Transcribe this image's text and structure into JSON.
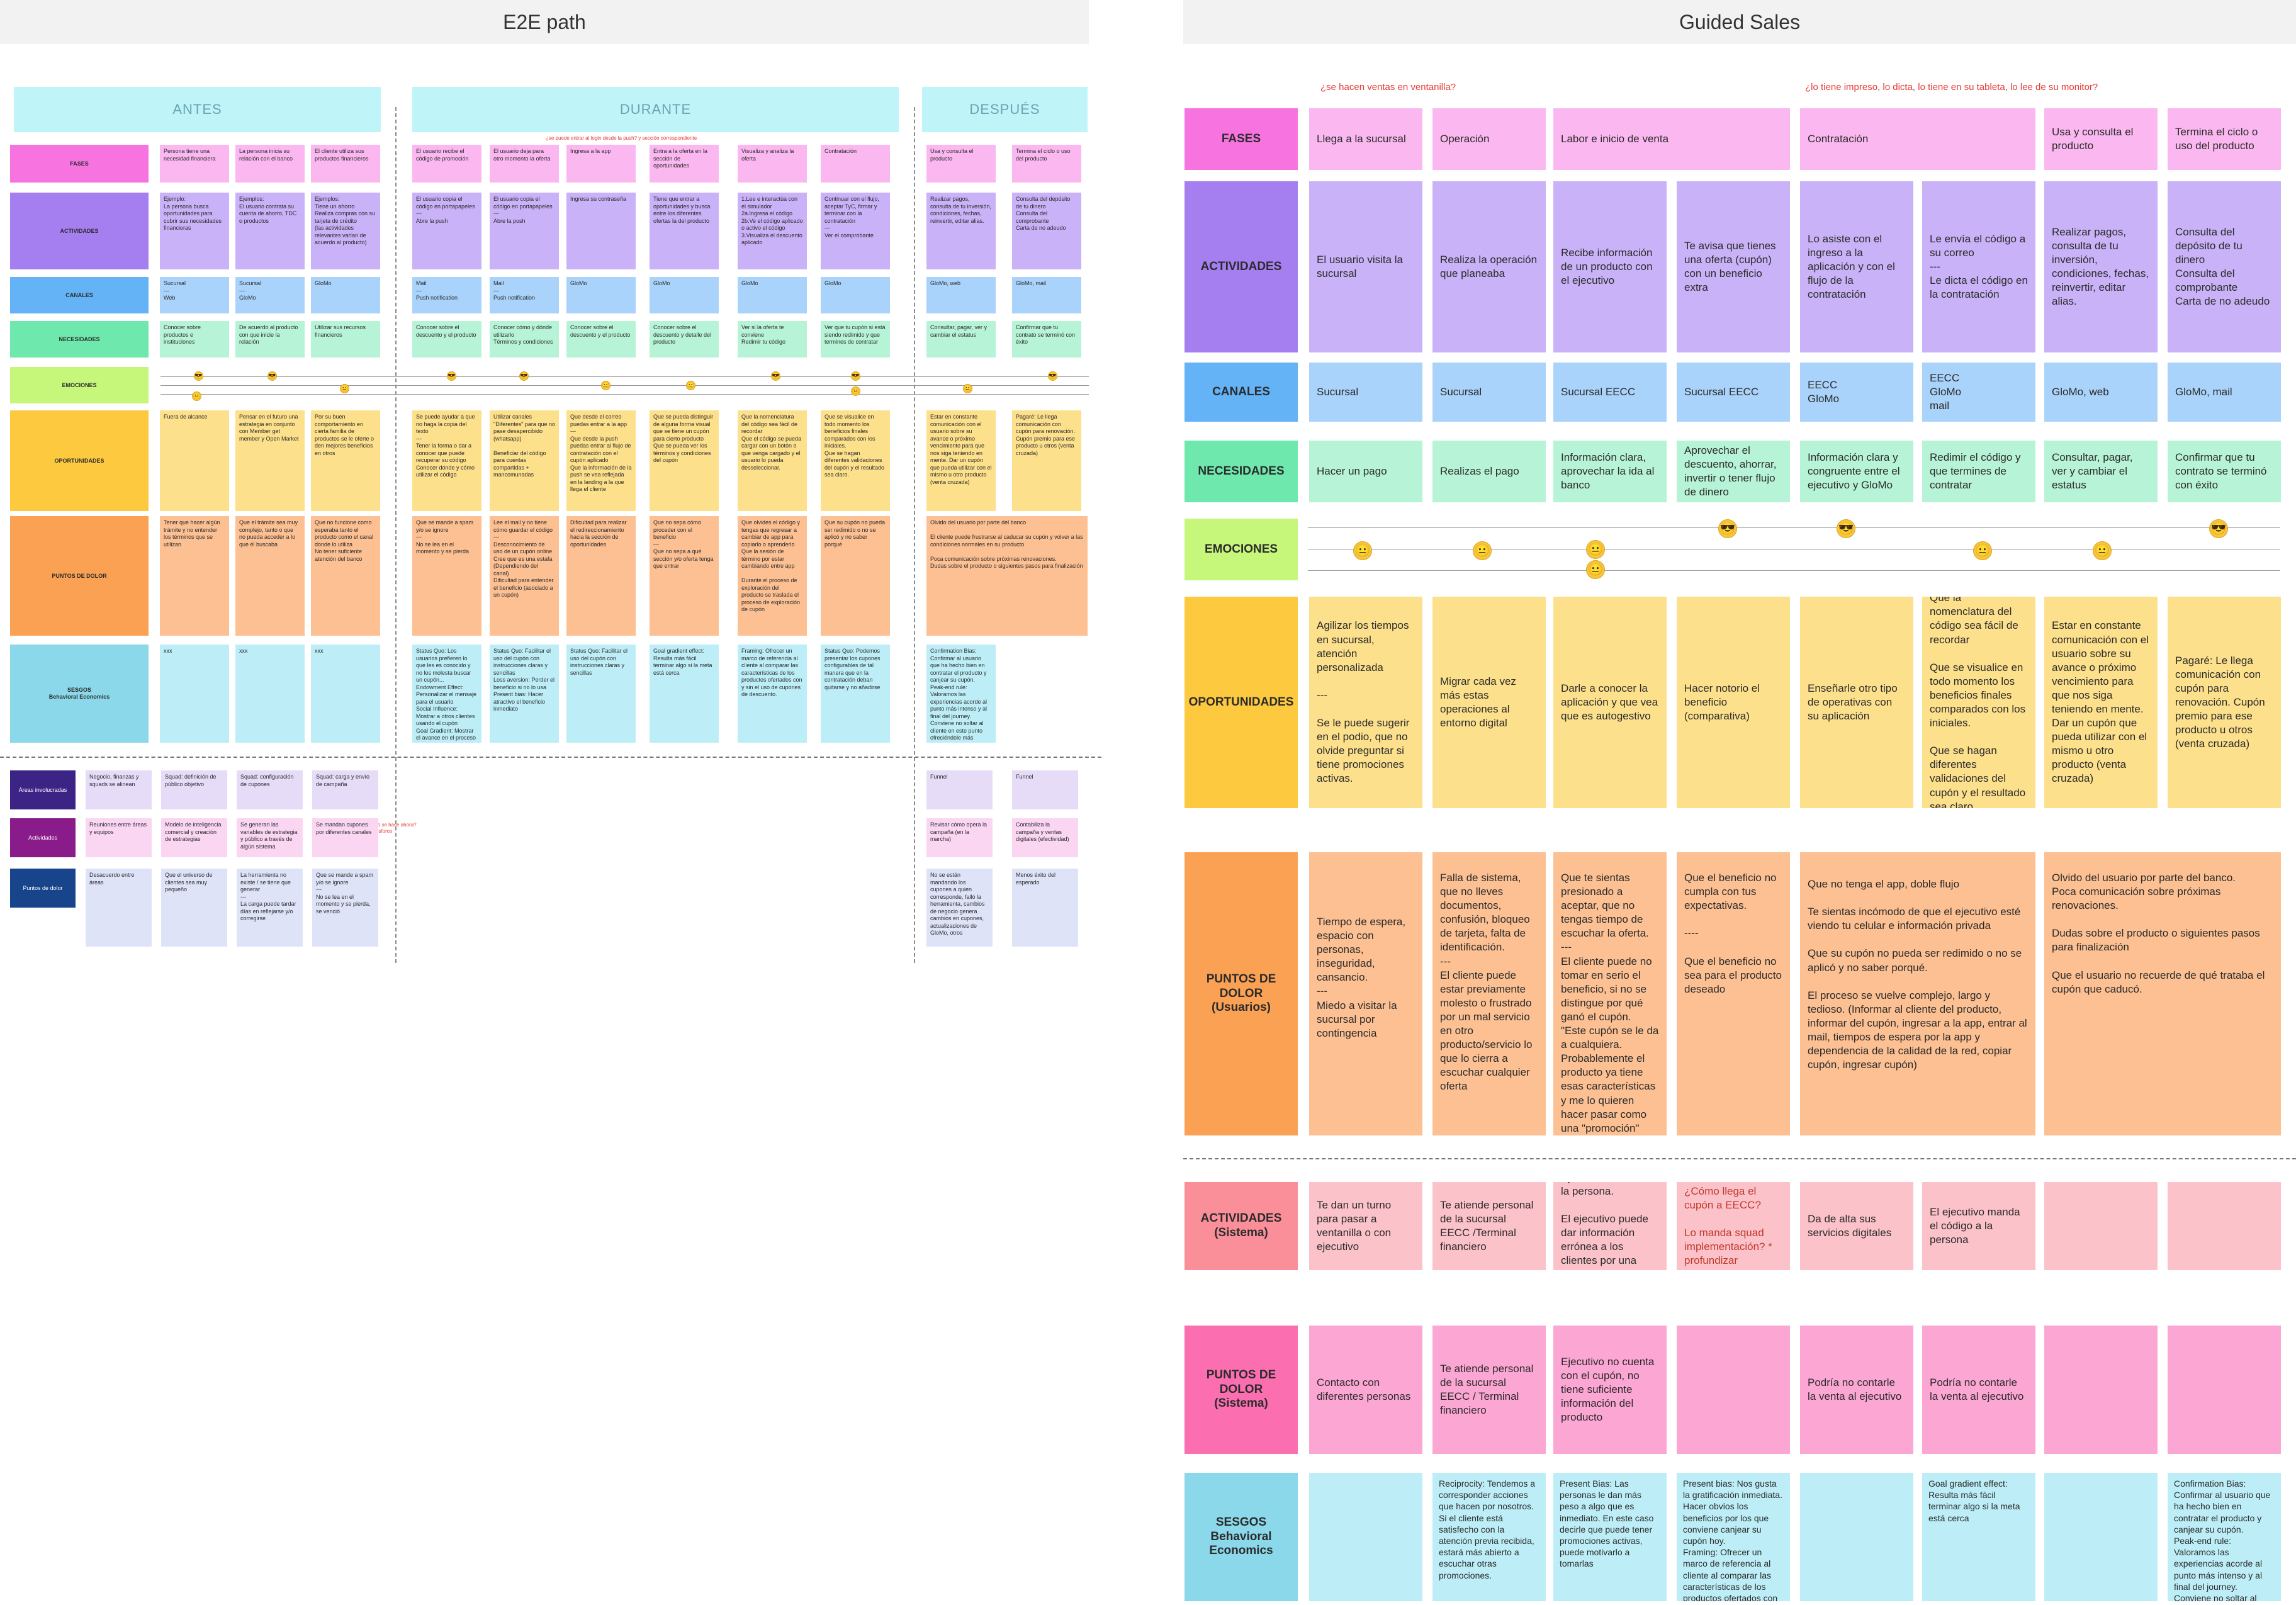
{
  "left": {
    "title": "E2E path",
    "headers": {
      "antes": "ANTES",
      "durante": "DURANTE",
      "despues": "DESPUÉS"
    },
    "note_top": "¿se puede entrar al login desde la push? y sección correspondiente",
    "note_side": "¿Cómo se hace ahora?\nY Salesforce",
    "rows": {
      "fases": "FASES",
      "actividades": "ACTIVIDADES",
      "canales": "CANALES",
      "necesidades": "NECESIDADES",
      "emociones": "EMOCIONES",
      "oportunidades": "OPORTUNIDADES",
      "puntos": "PUNTOS DE DOLOR",
      "sesgos": "SESGOS\nBehavioral Economics"
    },
    "lower_rows": {
      "areas": "Áreas involucradas",
      "actividades": "Actividades",
      "puntos": "Puntos de dolor"
    },
    "fases": [
      "Persona tiene una necesidad financiera",
      "La persona inicia su relación con el banco",
      "El cliente utiliza sus productos financieros",
      "El usuario recibe el código de promoción",
      "El usuario deja para otro momento la oferta",
      "Ingresa a la app",
      "Entra a la oferta en la sección de oportunidades",
      "Visualiza y analiza la oferta",
      "Contratación",
      "Usa y consulta el producto",
      "Termina el ciclo o uso del producto"
    ],
    "actividades": [
      "Ejemplo:\nLa persona busca oportunidades para cubrir sus necesidades financieras",
      "Ejemplos:\nEl usuario contrata su cuenta de ahorro, TDC o productos",
      "Ejemplos:\nTiene un ahorro\nRealiza compras con su tarjeta de crédito\n(las actividades relevantes varían de acuerdo al producto)",
      "El usuario copia el código en portapapeles\n---\nAbre la push",
      "El usuario copia el código en portapapeles\n---\nAbre la push",
      "Ingresa su contraseña",
      "Tiene que entrar a oportunidades y busca entre los diferentes ofertas la del producto",
      "1.Lee e interactúa con el simulador\n2a.Ingresa el código\n2b.Ve el código aplicado o activo el código\n3.Visualiza el descuento aplicado",
      "Continuar con el flujo, aceptar TyC, firmar y terminar con la contratación\n---\nVer el comprobante",
      "Realizar pagos, consulta de tu inversión, condiciones, fechas, reinvertir, editar alias.",
      "Consulta del depósito de tu dinero\nConsulta del comprobante\nCarta de no adeudo"
    ],
    "canales": [
      "Sucursal\n---\nWeb",
      "Sucursal\n---\nGloMo",
      "GloMo",
      "Mail\n---\nPush notification",
      "Mail\n---\nPush notification",
      "GloMo",
      "GloMo",
      "GloMo",
      "GloMo",
      "GloMo, web",
      "GloMo, mail"
    ],
    "necesidades": [
      "Conocer sobre productos e instituciones",
      "De acuerdo al producto con que inicie la relación",
      "Utilizar sus recursos financieros",
      "Conocer sobre el descuento y el producto",
      "Conocer cómo y dónde utilizarlo\nTérminos y condiciones",
      "Conocer sobre el descuento y el producto",
      "Conocer sobre el descuento y detalle del producto",
      "Ver si la oferta te conviene\nRedimir tu código",
      "Ver que tu cupón si está siendo redimido y que termines de contratar",
      "Consultar, pagar, ver y cambiar el estatus",
      "Confirmar que tu contrato se terminó con éxito"
    ],
    "oportunidades": [
      "Fuera de alcance",
      "Pensar en el futuro una estrategia en conjunto con Member get member y Open Market",
      "Por su buen comportamiento en cierta familia de productos se le oferte o den mejores beneficios en otros",
      "Se puede ayudar a que no haga la copia del texto\n---\nTener la forma o dar a conocer que puede recuperar su código\nConocer dónde y cómo utilizar el código",
      "Utilizar canales \"Diferentes\" para que no pase desapercibido (whatsapp)\n\nBeneficiar del código para cuentas compartidas + mancomunadas",
      "Que desde el correo puedas entrar a la app\n---\nQue desde la push puedas entrar al flujo de contratación con el cupón aplicado\nQue la información de la push se vea reflejada en la landing a la que llega el cliente",
      "Que se pueda distinguir de alguna forma visual que se tiene un cupón para cierto producto\nQue se pueda ver los términos y condiciones del cupón",
      "Que la nomenclatura del código sea fácil de recordar\nQue el código se pueda cargar con un botón o que venga cargado y el usuario lo pueda desseleccionar.",
      "Que se visualice en todo momento los beneficios finales comparados con los iniciales.\nQue se hagan diferentes validaciones del cupón y el resultado sea claro.",
      "Estar en constante comunicación con el usuario sobre su avance o próximo vencimiento para que nos siga teniendo en mente. Dar un cupón que pueda utilizar con el mismo u otro producto (venta cruzada)",
      "Pagaré: Le llega comunicación con cupón para renovación. Cupón premio para ese producto u otros (venta cruzada)"
    ],
    "puntos": [
      "Tener que hacer algún trámite y no entender los términos que se utilizan",
      "Que el trámite sea muy complejo, tanto o que no pueda acceder a lo que él buscaba",
      "Que no funcione como esperaba tanto el producto como el canal donde lo utiliza\nNo tener suficiente atención del banco",
      "Que se mande a spam y/o se ignore\n---\nNo se lea en el momento y se pierda",
      "Lee el mail y no tiene cómo guardar el código\n---\nDesconocimiento de uso de un cupón online\nCree que es una estafa (Dependiendo del canal)\nDificultad para entender el beneficio (asociado a un cupón)",
      "Dificultad para realizar el redireccionamiento hacia la sección de oportunidades",
      "Que no sepa cómo proceder con el beneficio\n---\nQue no sepa a qué sección y/o oferta tenga que entrar",
      "Que olvides el código y tengas que regresar a cambiar de app para copiarlo o aprenderlo\nQue la sesión de término por estar cambiando entre app\n\nDurante el proceso de exploración del producto se traslada el proceso de exploración de cupón",
      "Que su cupón no pueda ser redimido o no se aplicó y no saber porqué",
      "Olvido del usuario por parte del banco\n\nEl cliente puede frustrarse al caducar su cupón y volver a las condiciones normales en su producto\n\nPoca comunicación sobre próximas renovaciones.\nDudas sobre el producto o siguientes pasos para finalización"
    ],
    "sesgos": [
      "xxx",
      "xxx",
      "xxx",
      "Status Quo: Los usuarios prefieren lo que les es conocido y no les molesta buscar un cupón...\nEndowment Effect: Personalizar el mensaje para el usuario\nSocial Influence: Mostrar a otros clientes usando el cupón\nGoal Gradient: Mostrar el avance en el proceso",
      "Status Quo: Facilitar el uso del cupón con instrucciones claras y sencillas\nLoss aversion: Perder el beneficio si no lo usa\nPresent bias: Hacer atractivo el beneficio inmediato",
      "Status Quo: Facilitar el uso del cupón con instrucciones claras y sencillas",
      "Goal gradient effect: Resulta más fácil terminar algo si la meta está cerca",
      "Framing: Ofrecer un marco de referencia al cliente al comparar las características de los productos ofertados con y sin el uso de cupones de descuento.",
      "Status Quo: Podemos presentar los cupones configurables de tal manera que en la contratación deban quitarse y no añadirse",
      "Confirmation Bias: Confirmar al usuario que ha hecho bien en contratar el producto y canjear su cupón.\nPeak-end rule: Valoramos las experiencias acorde al punto más intenso y al final del journey. Conviene no soltar al cliente en este punto ofreciéndole más promociones y agradeciendo el uso de los beneficios."
    ],
    "areas": [
      "Negocio, finanzas y squads se alinean",
      "Squad: definición de público objetivo",
      "Squad: configuración de cupones",
      "Squad: carga y envío de campaña",
      "Funnel",
      "Funnel"
    ],
    "lower_actividades": [
      "Reuniones entre áreas y equipos",
      "Modelo de inteligencia comercial y creación de estrategias",
      "Se generan las variables de estrategia y público a través de algún sistema",
      "Se mandan cupones por diferentes canales",
      "Revisar cómo opera la campaña (en la marcha)",
      "Contabiliza la campaña y ventas digitales (efectividad)"
    ],
    "lower_puntos": [
      "Desacuerdo entre áreas",
      "Que el universo de clientes sea muy pequeño",
      "La herramienta no existe / se tiene que generar\n---\nLa carga puede tardar días en reflejarse y/o corregirse",
      "Que se mande a spam y/o se ignore\n---\nNo se lea en el momento y se pierda, se venció",
      "No se están mandando los cupones a quien corresponde, falló la herramienta, cambios de negocio genera cambios en cupones, actualizaciones de GloMo, otros",
      "Menos éxito del esperado"
    ]
  },
  "right": {
    "title": "Guided Sales",
    "note1": "¿se hacen ventas en ventanilla?",
    "note2": "¿lo tiene impreso, lo dicta, lo tiene en su tableta, lo lee de su monitor?",
    "rows": {
      "fases": "FASES",
      "actividades": "ACTIVIDADES",
      "canales": "CANALES",
      "necesidades": "NECESIDADES",
      "emociones": "EMOCIONES",
      "oportunidades": "OPORTUNIDADES",
      "puntos": "PUNTOS DE\nDOLOR\n(Usuarios)",
      "act_sistema": "ACTIVIDADES\n(Sistema)",
      "puntos_sistema": "PUNTOS DE\nDOLOR\n(Sistema)",
      "sesgos": "SESGOS\nBehavioral\nEconomics"
    },
    "fases": [
      "Llega a la sucursal",
      "Operación",
      "Labor e inicio de venta",
      "Contratación",
      "Usa y consulta el producto",
      "Termina el ciclo o uso del producto"
    ],
    "actividades": [
      "El usuario visita la sucursal",
      "Realiza la operación que planeaba",
      "Recibe información de un producto con el ejecutivo",
      "Te avisa que tienes una oferta (cupón) con un beneficio extra",
      "Lo asiste con el ingreso a la aplicación y con el flujo de la contratación",
      "Le envía el código a su correo\n---\nLe dicta el código en la contratación",
      "Realizar pagos, consulta de tu inversión, condiciones, fechas, reinvertir, editar alias.",
      "Consulta del depósito de tu dinero\nConsulta del comprobante\nCarta de no adeudo"
    ],
    "canales": [
      "Sucursal",
      "Sucursal",
      "Sucursal EECC",
      "Sucursal EECC",
      "EECC\nGloMo",
      "EECC\nGloMo\nmail",
      "GloMo, web",
      "GloMo, mail"
    ],
    "necesidades": [
      "Hacer un pago",
      "Realizas el pago",
      "Información clara, aprovechar la ida al banco",
      "Aprovechar el descuento, ahorrar, invertir o tener flujo de dinero",
      "Información clara y congruente entre el ejecutivo y GloMo",
      "Redimir el código y que termines de contratar",
      "Consultar, pagar, ver y cambiar el estatus",
      "Confirmar que tu contrato se terminó con éxito"
    ],
    "oportunidades": [
      "Agilizar los tiempos en sucursal, atención personalizada\n\n---\n\nSe le puede sugerir en el podio, que no olvide preguntar si tiene promociones activas.",
      "Migrar cada vez más estas operaciones al entorno digital",
      "Darle a conocer la aplicación y que vea que es autogestivo",
      "Hacer notorio el beneficio (comparativa)",
      "Enseñarle otro tipo de operativas con su aplicación",
      "Que la nomenclatura del código sea fácil de recordar\n\nQue se visualice en todo momento los beneficios finales comparados con los iniciales.\n\nQue se hagan diferentes validaciones del cupón y el resultado sea claro.",
      "Estar en constante comunicación con el usuario sobre su avance o próximo vencimiento para que nos siga teniendo en mente. Dar un cupón que pueda utilizar con el mismo u otro producto (venta cruzada)",
      "Pagaré: Le llega comunicación con cupón para renovación. Cupón premio para ese producto u otros (venta cruzada)"
    ],
    "puntos": [
      "Tiempo de espera, espacio con personas, inseguridad, cansancio.\n---\nMiedo a visitar la sucursal por contingencia",
      "Falla de sistema, que no lleves documentos, confusión, bloqueo de tarjeta, falta de identificación.\n---\nEl cliente puede estar previamente molesto o frustrado por un mal servicio en otro producto/servicio lo que lo cierra a escuchar cualquier oferta",
      "Que te sientas presionado a aceptar, que no tengas tiempo de escuchar la oferta.\n---\nEl cliente puede no tomar en serio el beneficio, si no se distingue por qué ganó el cupón.\n\"Este cupón se le da a cualquiera. Probablemente el producto ya tiene esas características y me lo quieren hacer pasar como una \"promoción\"",
      "Que el beneficio no cumpla con tus expectativas.\n\n----\n\nQue el beneficio no sea para el producto deseado",
      "Que no tenga el app, doble flujo\n\nTe sientas incómodo de que el ejecutivo esté viendo tu celular e información privada\n\nQue su cupón no pueda ser redimido o no se aplicó y no saber porqué.\n\nEl proceso se vuelve complejo, largo y tedioso. (Informar al cliente del producto, informar del cupón, ingresar a la app, entrar al mail, tiempos de espera por la app y dependencia de la calidad de la red, copiar cupón, ingresar cupón)",
      "Olvido del usuario por parte del banco.\nPoca comunicación sobre próximas renovaciones.\n\nDudas sobre el producto o siguientes pasos para finalización\n\nQue el usuario no recuerde de qué trataba el cupón que caducó."
    ],
    "act_sistema": [
      "Te dan un turno para pasar a ventanilla o con ejecutivo",
      "Te atiende personal de la sucursal EECC /Terminal financiero",
      "Ejecutivo atiende a la persona.\n\nEl ejecutivo puede dar información errónea a los clientes por una mala capacitación",
      "¿Cómo llega el cupón a EECC?\n\nLo manda squad implementación? * profundizar",
      "Da de alta sus servicios digitales",
      "El ejecutivo manda el código a la persona",
      "",
      ""
    ],
    "puntos_sistema": [
      "Contacto con diferentes personas",
      "Te atiende personal de la sucursal EECC / Terminal financiero",
      "Ejecutivo no cuenta con el cupón, no tiene suficiente información del producto",
      "",
      "Podría no contarle la venta al ejecutivo",
      "Podría no contarle la venta al ejecutivo",
      "",
      ""
    ],
    "sesgos": [
      "",
      "Reciprocity: Tendemos a corresponder acciones que hacen por nosotros. Si el cliente está satisfecho con la atención previa recibida, estará más abierto a escuchar otras promociones.",
      "Present Bias: Las personas le dan más peso a algo que es inmediato. En este caso decirle que puede tener promociones activas, puede motivarlo a tomarlas",
      "Present bias: Nos gusta la gratificación inmediata. Hacer obvios los beneficios por los que conviene canjear su cupón hoy.\nFraming: Ofrecer un marco de referencia al cliente al comparar las características de los productos ofertados con y sin el uso de cupones de descuento.",
      "",
      "Goal gradient effect: Resulta más fácil terminar algo si la meta está cerca",
      "",
      "Confirmation Bias: Confirmar al usuario que ha hecho bien en contratar el producto y canjear su cupón.\nPeak-end rule: Valoramos las experiencias acorde al punto más intenso y al final del journey. Conviene no soltar al cliente en este punto ofreciéndole más promociones y agradeciendo el uso de sus beneficios."
    ]
  },
  "colors": {
    "fases": "#fbb8f0",
    "fases_lbl": "#f774e0",
    "actividades": "#c9b2f7",
    "actividades_lbl": "#a57ef0",
    "canales": "#a9d3fb",
    "canales_lbl": "#64b3f7",
    "necesidades": "#b7f3d6",
    "necesidades_lbl": "#6ee8ac",
    "emociones_lbl": "#c6f77b",
    "oportunidades": "#fde08c",
    "oportunidades_lbl": "#fdc93e",
    "puntos": "#fcc093",
    "puntos_lbl": "#fba154",
    "sesgos": "#bdeef7",
    "sesgos_lbl": "#8ad8ea",
    "header": "#bff5f9",
    "act_sis": "#fcc2c9",
    "act_sis_lbl": "#fa8f99",
    "pd_sis": "#fca6d3",
    "pd_sis_lbl": "#fb6eb0",
    "areas_lbl": "#3b2485",
    "lact_lbl": "#8a1b8a",
    "lpd_lbl": "#17448a",
    "areas": "#e6dcf8",
    "lact": "#fad6f3",
    "lpd": "#dfe3f8"
  }
}
